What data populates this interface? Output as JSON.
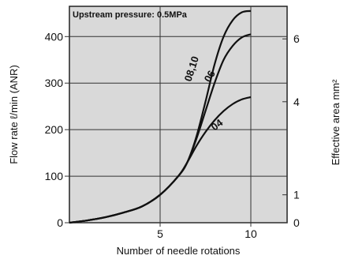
{
  "chart_data": {
    "type": "line",
    "title": "Upstream pressure: 0.5MPa",
    "xlabel": "Number of needle rotations",
    "ylabel_left": "Flow rate ℓ/min (ANR)",
    "ylabel_right": "Effective area  mm²",
    "xlim": [
      0,
      12
    ],
    "ylim": [
      0,
      465
    ],
    "x_ticks": [
      "5",
      "10"
    ],
    "x_tick_values": [
      5,
      10
    ],
    "y_ticks_left": [
      "0",
      "100",
      "200",
      "300",
      "400"
    ],
    "y_tick_values_left": [
      0,
      100,
      200,
      300,
      400
    ],
    "y_ticks_right": [
      "0",
      "1",
      "4",
      "6"
    ],
    "y_tick_values_right": [
      0,
      60,
      260,
      395
    ],
    "grid": true,
    "background": "#d9d9d9",
    "line_color": "#111111",
    "series": [
      {
        "name": "08,10",
        "x": [
          0,
          1,
          2,
          3,
          4,
          5,
          6,
          6.5,
          7,
          7.5,
          8,
          8.5,
          9,
          9.5,
          10
        ],
        "y": [
          0,
          5,
          12,
          22,
          35,
          60,
          100,
          130,
          185,
          260,
          340,
          400,
          435,
          452,
          455
        ]
      },
      {
        "name": "06",
        "x": [
          0,
          1,
          2,
          3,
          4,
          5,
          6,
          6.5,
          7,
          7.5,
          8,
          8.5,
          9,
          9.5,
          10
        ],
        "y": [
          0,
          5,
          12,
          22,
          35,
          60,
          100,
          130,
          180,
          240,
          300,
          350,
          380,
          398,
          405
        ]
      },
      {
        "name": "04",
        "x": [
          0,
          1,
          2,
          3,
          4,
          5,
          6,
          6.5,
          7,
          7.5,
          8,
          8.5,
          9,
          9.5,
          10
        ],
        "y": [
          0,
          5,
          12,
          22,
          35,
          60,
          100,
          130,
          165,
          195,
          220,
          240,
          255,
          265,
          270
        ]
      }
    ]
  }
}
